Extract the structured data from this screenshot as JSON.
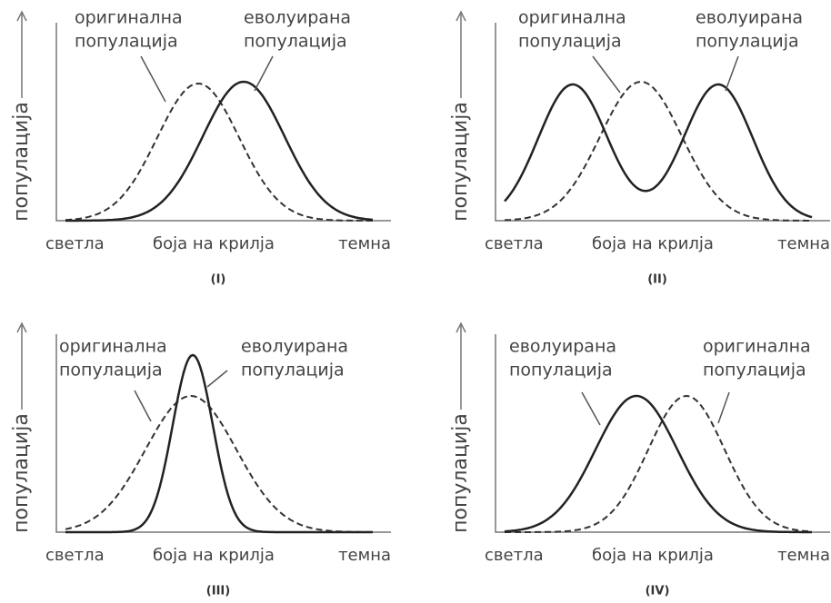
{
  "panels": [
    {
      "label": "(I)",
      "y_axis": "популација",
      "x_axis": [
        "светла",
        "боја на крилја",
        "темна"
      ],
      "annotations": [
        [
          "оригинална",
          "популација"
        ],
        [
          "еволуирана",
          "популација"
        ]
      ]
    },
    {
      "label": "(II)",
      "y_axis": "популација",
      "x_axis": [
        "светла",
        "боја на крилја",
        "темна"
      ],
      "annotations": [
        [
          "оригинална",
          "популација"
        ],
        [
          "еволуирана",
          "популација"
        ]
      ]
    },
    {
      "label": "(III)",
      "y_axis": "популација",
      "x_axis": [
        "светла",
        "боја на крилја",
        "темна"
      ],
      "annotations": [
        [
          "оригинална",
          "популација"
        ],
        [
          "еволуирана",
          "популација"
        ]
      ]
    },
    {
      "label": "(IV)",
      "y_axis": "популација",
      "x_axis": [
        "светла",
        "боја на крилја",
        "темна"
      ],
      "annotations": [
        [
          "еволуирана",
          "популација"
        ],
        [
          "оригинална",
          "популација"
        ]
      ]
    }
  ]
}
